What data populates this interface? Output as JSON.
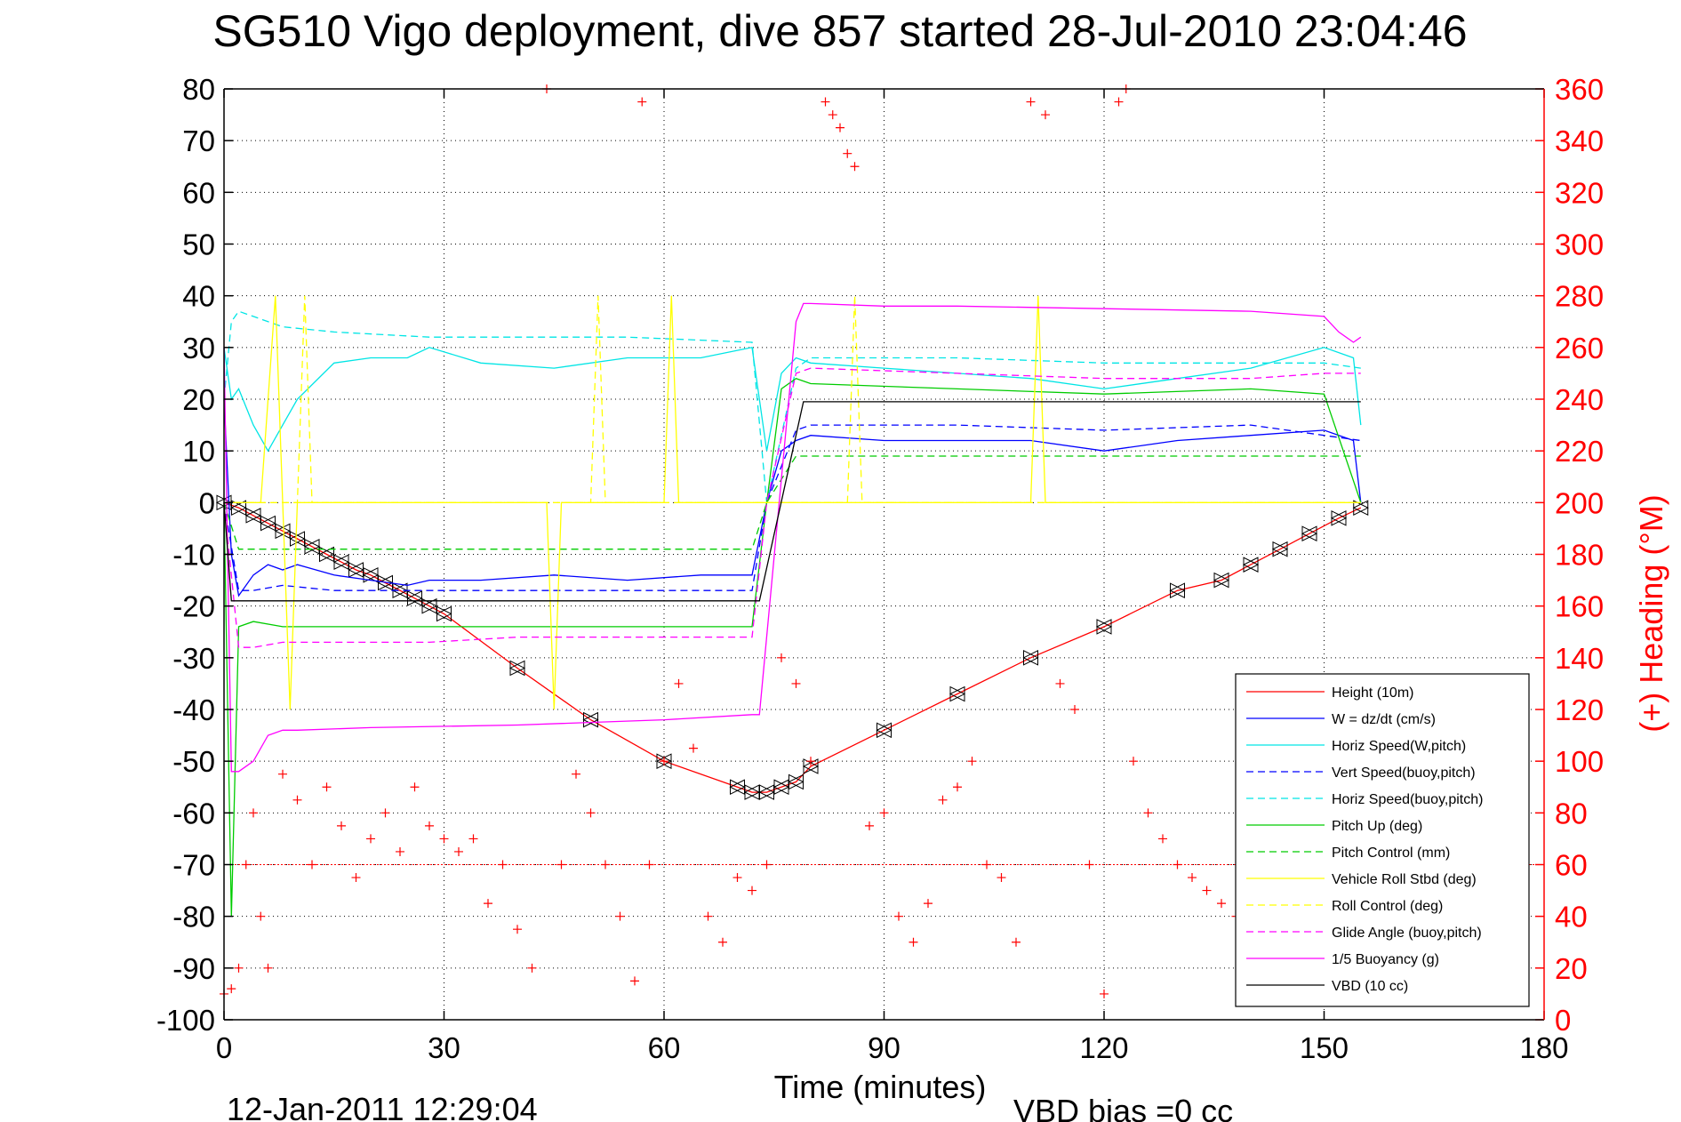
{
  "title": "SG510 Vigo deployment, dive 857 started 28-Jul-2010 23:04:46",
  "footer_left": "12-Jan-2011 12:29:04",
  "footer_right": "VBD bias =0 cc",
  "chart_data": {
    "type": "line",
    "xlabel": "Time (minutes)",
    "ylabel": "",
    "ylabel_right": "(+) Heading (°M)",
    "xlim": [
      0,
      180
    ],
    "ylim": [
      -100,
      80
    ],
    "ylim_right": [
      0,
      360
    ],
    "x_ticks": [
      "0",
      "30",
      "60",
      "90",
      "120",
      "150",
      "180"
    ],
    "y_ticks": [
      "80",
      "70",
      "60",
      "50",
      "40",
      "30",
      "20",
      "10",
      "0",
      "-10",
      "-20",
      "-30",
      "-40",
      "-50",
      "-60",
      "-70",
      "-80",
      "-90",
      "-100"
    ],
    "y_ticks_right": [
      "360",
      "340",
      "320",
      "300",
      "280",
      "260",
      "240",
      "220",
      "200",
      "180",
      "160",
      "140",
      "120",
      "100",
      "80",
      "60",
      "40",
      "20",
      "0"
    ],
    "grid": true,
    "legend_position": "lower-right",
    "series": [
      {
        "name": "Height (10m)",
        "color": "#ff0000",
        "dash": "solid",
        "marker": "triangle",
        "x": [
          0,
          2,
          4,
          6,
          8,
          10,
          12,
          14,
          16,
          18,
          20,
          22,
          24,
          26,
          28,
          30,
          40,
          50,
          60,
          70,
          72,
          74,
          76,
          78,
          80,
          90,
          100,
          110,
          120,
          130,
          136,
          140,
          144,
          148,
          152,
          155
        ],
        "y": [
          0,
          -1,
          -2.5,
          -4,
          -5.5,
          -7,
          -8.5,
          -10,
          -11.5,
          -13,
          -14,
          -15.5,
          -17,
          -18.5,
          -20,
          -21.5,
          -32,
          -42,
          -50,
          -55,
          -56,
          -56,
          -55,
          -54,
          -51,
          -44,
          -37,
          -30,
          -24,
          -17,
          -15,
          -12,
          -9,
          -6,
          -3,
          -1
        ]
      },
      {
        "name": "W = dz/dt (cm/s)",
        "color": "#0000ff",
        "dash": "solid",
        "x": [
          0,
          1,
          2,
          4,
          6,
          8,
          10,
          15,
          20,
          25,
          28,
          35,
          45,
          55,
          65,
          72,
          74,
          76,
          78,
          80,
          90,
          100,
          110,
          120,
          130,
          140,
          150,
          154,
          155
        ],
        "y": [
          20,
          -10,
          -18,
          -14,
          -12,
          -13,
          -12,
          -14,
          -15,
          -16,
          -15,
          -15,
          -14,
          -15,
          -14,
          -14,
          0,
          10,
          12,
          13,
          12,
          12,
          12,
          10,
          12,
          13,
          14,
          12,
          0
        ]
      },
      {
        "name": "Horiz Speed(W,pitch)",
        "color": "#00e5e5",
        "dash": "solid",
        "x": [
          0,
          1,
          2,
          4,
          6,
          8,
          10,
          15,
          20,
          25,
          28,
          35,
          45,
          55,
          65,
          72,
          74,
          76,
          78,
          80,
          90,
          100,
          110,
          120,
          130,
          140,
          150,
          154,
          155
        ],
        "y": [
          30,
          20,
          22,
          15,
          10,
          15,
          20,
          27,
          28,
          28,
          30,
          27,
          26,
          28,
          28,
          30,
          10,
          25,
          28,
          27,
          26,
          25,
          24,
          22,
          24,
          26,
          30,
          28,
          15
        ]
      },
      {
        "name": "Vert Speed(buoy,pitch)",
        "color": "#0000ff",
        "dash": "dashed",
        "x": [
          0,
          2,
          4,
          8,
          15,
          28,
          40,
          55,
          72,
          74,
          78,
          80,
          100,
          120,
          140,
          155
        ],
        "y": [
          0,
          -17,
          -17,
          -16,
          -17,
          -17,
          -17,
          -17,
          -17,
          0,
          14,
          15,
          15,
          14,
          15,
          12
        ]
      },
      {
        "name": "Horiz Speed(buoy,pitch)",
        "color": "#00e5e5",
        "dash": "dashed",
        "x": [
          0,
          1,
          2,
          4,
          8,
          15,
          28,
          40,
          55,
          72,
          74,
          78,
          80,
          100,
          120,
          140,
          150,
          155
        ],
        "y": [
          20,
          35,
          37,
          36,
          34,
          33,
          32,
          32,
          32,
          31,
          0,
          26,
          28,
          28,
          27,
          27,
          27,
          26
        ]
      },
      {
        "name": "Pitch Up (deg)",
        "color": "#00cc00",
        "dash": "solid",
        "x": [
          0,
          1,
          2,
          4,
          8,
          15,
          28,
          40,
          55,
          72,
          74,
          76,
          78,
          80,
          100,
          120,
          140,
          150,
          155
        ],
        "y": [
          0,
          -80,
          -24,
          -23,
          -24,
          -24,
          -24,
          -24,
          -24,
          -24,
          0,
          22,
          24,
          23,
          22,
          21,
          22,
          21,
          0
        ]
      },
      {
        "name": "Pitch Control (mm)",
        "color": "#00cc00",
        "dash": "dashed",
        "x": [
          0,
          2,
          4,
          8,
          15,
          28,
          40,
          55,
          72,
          74,
          78,
          80,
          100,
          120,
          140,
          155
        ],
        "y": [
          0,
          -9,
          -9,
          -9,
          -9,
          -9,
          -9,
          -9,
          -9,
          0,
          9,
          9,
          9,
          9,
          9,
          9
        ]
      },
      {
        "name": "Vehicle Roll Stbd (deg)",
        "color": "#ffff00",
        "dash": "solid",
        "x": [
          0,
          5,
          7,
          8,
          9,
          10,
          20,
          30,
          44,
          45,
          46,
          60,
          61,
          62,
          72,
          74,
          78,
          80,
          90,
          100,
          110,
          111,
          112,
          120,
          140,
          150,
          155
        ],
        "y": [
          0,
          0,
          40,
          0,
          -40,
          0,
          0,
          0,
          0,
          -40,
          0,
          0,
          40,
          0,
          0,
          0,
          0,
          0,
          0,
          0,
          0,
          40,
          0,
          0,
          0,
          0,
          0
        ]
      },
      {
        "name": "Roll Control (deg)",
        "color": "#ffff00",
        "dash": "dashed",
        "x": [
          0,
          10,
          11,
          12,
          20,
          30,
          50,
          51,
          52,
          72,
          78,
          80,
          85,
          86,
          87,
          100,
          120,
          140,
          150,
          155
        ],
        "y": [
          0,
          0,
          40,
          0,
          0,
          0,
          0,
          40,
          0,
          0,
          0,
          0,
          0,
          40,
          0,
          0,
          0,
          0,
          0,
          0
        ]
      },
      {
        "name": "Glide Angle (buoy,pitch)",
        "color": "#ff00ff",
        "dash": "dashed",
        "x": [
          0,
          2,
          4,
          8,
          15,
          28,
          40,
          55,
          72,
          74,
          78,
          80,
          100,
          120,
          140,
          150,
          155
        ],
        "y": [
          0,
          -28,
          -28,
          -27,
          -27,
          -27,
          -26,
          -26,
          -26,
          0,
          25,
          26,
          25,
          24,
          24,
          25,
          25
        ]
      },
      {
        "name": "1/5 Buoyancy (g)",
        "color": "#ff00ff",
        "dash": "solid",
        "x": [
          0,
          1,
          2,
          4,
          6,
          8,
          10,
          20,
          40,
          60,
          72,
          73,
          78,
          79,
          80,
          90,
          100,
          120,
          140,
          150,
          152,
          154,
          155
        ],
        "y": [
          30,
          -52,
          -52,
          -50,
          -45,
          -44,
          -44,
          -43.5,
          -43,
          -42,
          -41,
          -41,
          35,
          38.5,
          38.5,
          38,
          38,
          37.5,
          37,
          36,
          33,
          31,
          32
        ]
      },
      {
        "name": "VBD (10 cc)",
        "color": "#000000",
        "dash": "solid",
        "x": [
          0,
          1,
          2,
          20,
          40,
          72,
          73,
          79,
          80,
          100,
          120,
          140,
          155
        ],
        "y": [
          0,
          -19,
          -19,
          -19,
          -19,
          -19,
          -19,
          19.5,
          19.5,
          19.5,
          19.5,
          19.5,
          19.5
        ]
      },
      {
        "name": "Heading",
        "color": "#ff0000",
        "axis": "right",
        "marker": "plus",
        "x": [
          0,
          1,
          2,
          3,
          4,
          5,
          6,
          8,
          10,
          12,
          14,
          16,
          18,
          20,
          22,
          24,
          26,
          28,
          30,
          32,
          34,
          36,
          38,
          40,
          42,
          44,
          46,
          48,
          50,
          52,
          54,
          56,
          57,
          58,
          60,
          62,
          64,
          66,
          68,
          70,
          72,
          74,
          76,
          78,
          80,
          82,
          83,
          84,
          85,
          86,
          88,
          90,
          92,
          94,
          96,
          98,
          100,
          102,
          104,
          106,
          108,
          110,
          112,
          114,
          116,
          118,
          120,
          122,
          123,
          124,
          126,
          128,
          130,
          132,
          134,
          136,
          138
        ],
        "y": [
          10,
          12,
          20,
          60,
          80,
          40,
          20,
          95,
          85,
          60,
          90,
          75,
          55,
          70,
          80,
          65,
          90,
          75,
          70,
          65,
          70,
          45,
          60,
          35,
          20,
          360,
          60,
          95,
          80,
          60,
          40,
          15,
          355,
          60,
          100,
          130,
          105,
          40,
          30,
          55,
          50,
          60,
          140,
          130,
          100,
          355,
          350,
          345,
          335,
          330,
          75,
          80,
          40,
          30,
          45,
          85,
          90,
          100,
          60,
          55,
          30,
          355,
          350,
          130,
          120,
          60,
          10,
          355,
          360,
          100,
          80,
          70,
          60,
          55,
          50,
          45,
          40
        ]
      }
    ]
  }
}
